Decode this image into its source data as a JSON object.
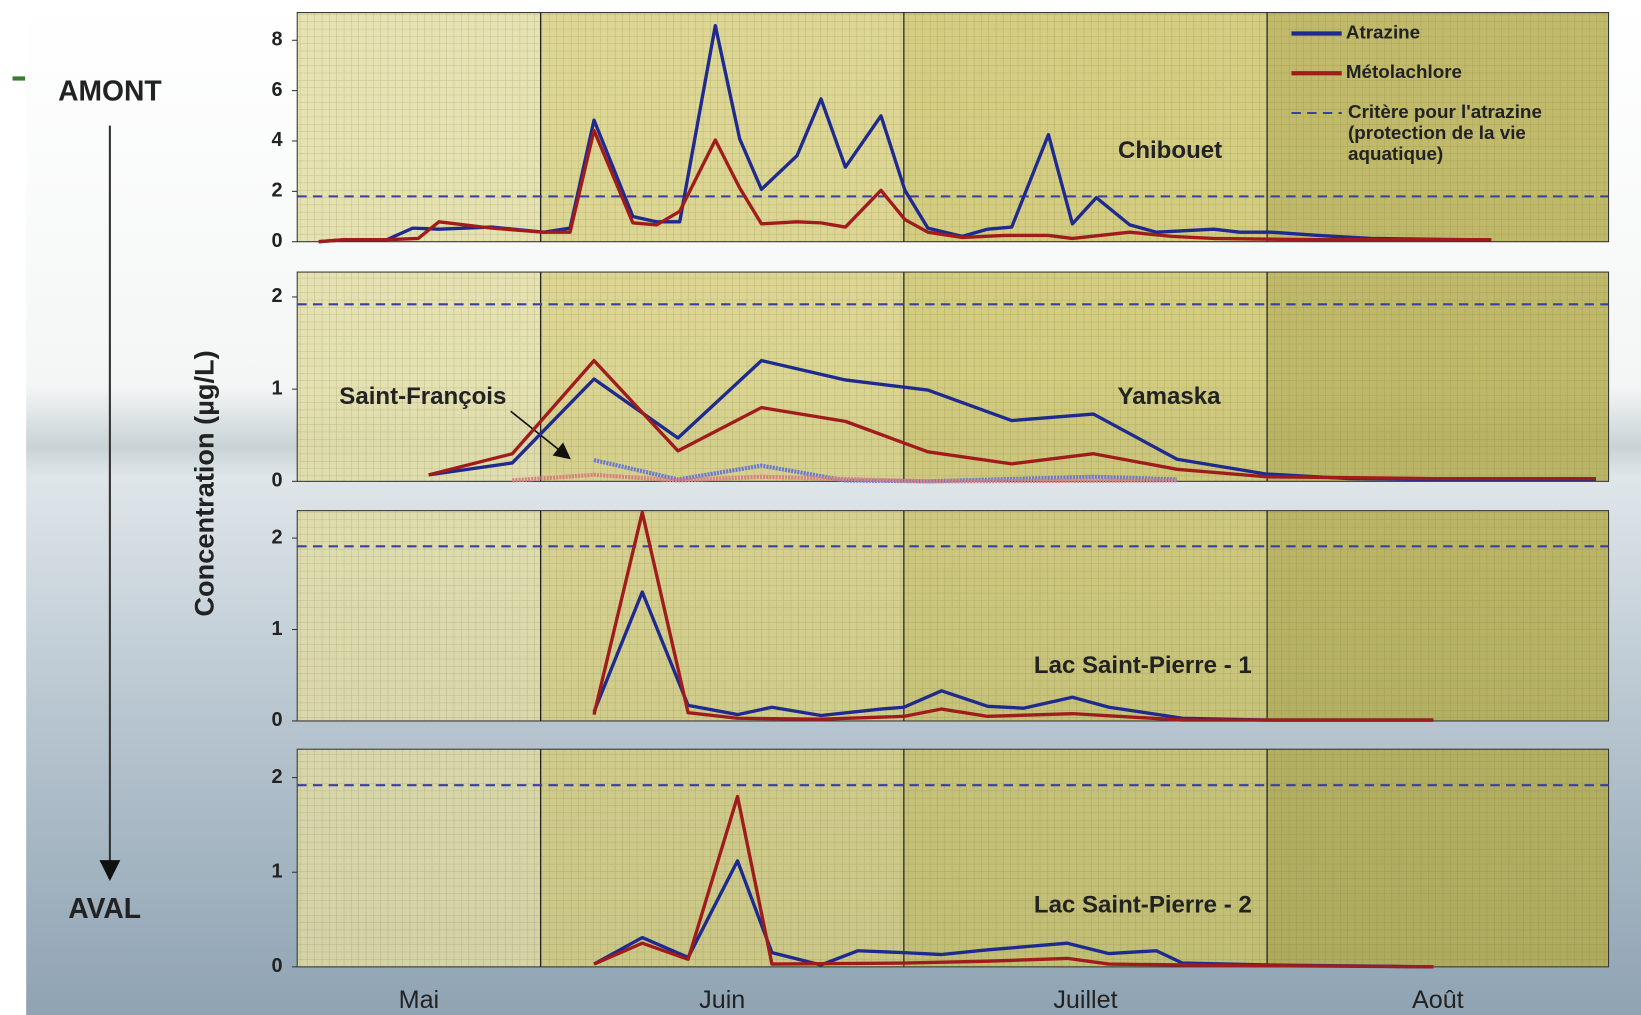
{
  "page": {
    "upstream": "AMONT",
    "downstream": "AVAL",
    "y_label": "Concentration (µg/L)"
  },
  "chart_data": [
    {
      "type": "line",
      "title": "Chibouet",
      "xlim": [
        0.33,
        3.94
      ],
      "xticks": [
        1,
        2,
        3
      ],
      "ylim": [
        0,
        9.1
      ],
      "yticks": [
        0,
        2,
        4,
        6,
        8
      ],
      "reference_line": {
        "name": "Critère pour l'atrazine (protection de la vie aquatique)",
        "value": 1.8,
        "color": "#3b3fa0"
      },
      "series": [
        {
          "name": "Atrazine",
          "color": "#1f2a8f",
          "x": [
            0.389,
            0.461,
            0.576,
            0.648,
            0.72,
            0.865,
            1.009,
            1.081,
            1.147,
            1.254,
            1.32,
            1.383,
            1.481,
            1.548,
            1.608,
            1.706,
            1.772,
            1.839,
            1.937,
            2.003,
            2.066,
            2.161,
            2.231,
            2.297,
            2.398,
            2.464,
            2.53,
            2.622,
            2.695,
            2.853,
            2.925,
            3.012,
            3.141,
            3.285,
            3.545,
            3.617
          ],
          "values": [
            0,
            0.08,
            0.08,
            0.54,
            0.5,
            0.58,
            0.38,
            0.54,
            4.83,
            1.0,
            0.79,
            0.79,
            8.58,
            4.08,
            2.08,
            3.42,
            5.67,
            2.96,
            5.0,
            2.04,
            0.54,
            0.21,
            0.5,
            0.58,
            4.25,
            0.71,
            1.75,
            0.67,
            0.38,
            0.5,
            0.38,
            0.38,
            0.25,
            0.13,
            0.08,
            0.08
          ]
        },
        {
          "name": "Métolachlore",
          "color": "#a01c1c",
          "x": [
            0.389,
            0.461,
            0.576,
            0.663,
            0.72,
            0.865,
            1.009,
            1.081,
            1.147,
            1.254,
            1.32,
            1.383,
            1.481,
            1.548,
            1.608,
            1.706,
            1.772,
            1.839,
            1.937,
            2.003,
            2.066,
            2.161,
            2.277,
            2.398,
            2.464,
            2.622,
            2.738,
            2.853,
            3.141,
            3.617
          ],
          "values": [
            0,
            0.08,
            0.08,
            0.13,
            0.79,
            0.54,
            0.38,
            0.38,
            4.42,
            0.75,
            0.67,
            1.21,
            4.04,
            2.13,
            0.71,
            0.79,
            0.75,
            0.58,
            2.04,
            0.88,
            0.38,
            0.17,
            0.25,
            0.25,
            0.13,
            0.38,
            0.21,
            0.13,
            0.08,
            0.08
          ]
        }
      ]
    },
    {
      "type": "line",
      "title": "Yamaska",
      "xlim": [
        0.33,
        3.94
      ],
      "xticks": [
        1,
        2,
        3
      ],
      "ylim": [
        0,
        2.27
      ],
      "yticks": [
        0,
        1,
        2
      ],
      "reference_line": {
        "value": 1.92,
        "color": "#3b3fa0"
      },
      "series": [
        {
          "name": "Atrazine",
          "color": "#1f2a8f",
          "x": [
            0.692,
            0.922,
            1.147,
            1.378,
            1.608,
            1.839,
            2.066,
            2.297,
            2.522,
            2.752,
            2.997,
            3.228,
            3.458,
            3.905
          ],
          "values": [
            0.07,
            0.2,
            1.11,
            0.47,
            1.31,
            1.1,
            0.99,
            0.66,
            0.73,
            0.24,
            0.08,
            0.03,
            0.02,
            0.02
          ]
        },
        {
          "name": "Métolachlore",
          "color": "#a01c1c",
          "x": [
            0.692,
            0.922,
            1.147,
            1.378,
            1.608,
            1.839,
            2.066,
            2.297,
            2.522,
            2.752,
            2.997,
            3.458,
            3.905
          ],
          "values": [
            0.07,
            0.3,
            1.31,
            0.33,
            0.8,
            0.65,
            0.32,
            0.19,
            0.3,
            0.13,
            0.05,
            0.03,
            0.03
          ]
        }
      ],
      "inset": {
        "label": "Saint-François",
        "series": [
          {
            "color": "#6a78d0",
            "x": [
              1.147,
              1.378,
              1.608,
              1.839,
              2.066,
              2.522,
              2.752
            ],
            "values": [
              0.23,
              0.02,
              0.17,
              0.01,
              0,
              0.05,
              0.02
            ]
          },
          {
            "color": "#d98080",
            "x": [
              0.922,
              1.147,
              1.378,
              1.608,
              2.066,
              2.752
            ],
            "values": [
              0.01,
              0.07,
              0.01,
              0.05,
              0,
              0.01
            ]
          }
        ]
      }
    },
    {
      "type": "line",
      "title": "Lac Saint-Pierre - 1",
      "xlim": [
        0.33,
        3.94
      ],
      "xticks": [
        1,
        2,
        3
      ],
      "ylim": [
        0,
        2.3
      ],
      "yticks": [
        0,
        1,
        2
      ],
      "reference_line": {
        "value": 1.91,
        "color": "#3b3fa0"
      },
      "series": [
        {
          "name": "Atrazine",
          "color": "#1f2a8f",
          "x": [
            1.147,
            1.28,
            1.406,
            1.542,
            1.637,
            1.772,
            1.937,
            2.0,
            2.104,
            2.231,
            2.329,
            2.464,
            2.565,
            2.767,
            2.997,
            3.458
          ],
          "values": [
            0.1,
            1.41,
            0.17,
            0.07,
            0.15,
            0.06,
            0.13,
            0.15,
            0.33,
            0.16,
            0.14,
            0.26,
            0.15,
            0.03,
            0.01,
            0.01
          ]
        },
        {
          "name": "Métolachlore",
          "color": "#a01c1c",
          "x": [
            1.147,
            1.28,
            1.406,
            1.542,
            1.772,
            2.0,
            2.104,
            2.231,
            2.464,
            2.767,
            3.458
          ],
          "values": [
            0.07,
            2.28,
            0.09,
            0.03,
            0.02,
            0.05,
            0.13,
            0.05,
            0.08,
            0.01,
            0.01
          ]
        }
      ]
    },
    {
      "type": "line",
      "title": "Lac Saint-Pierre - 2",
      "xlim": [
        0.33,
        3.94
      ],
      "xticks": [
        1,
        2,
        3
      ],
      "categories": [
        "Mai",
        "Juin",
        "Juillet",
        "Août"
      ],
      "ylim": [
        0,
        2.3
      ],
      "yticks": [
        0,
        1,
        2
      ],
      "reference_line": {
        "value": 1.92,
        "color": "#3b3fa0"
      },
      "series": [
        {
          "name": "Atrazine",
          "color": "#1f2a8f",
          "x": [
            1.147,
            1.28,
            1.406,
            1.542,
            1.637,
            1.772,
            1.873,
            2.0,
            2.104,
            2.231,
            2.45,
            2.565,
            2.695,
            2.767,
            2.997,
            3.458
          ],
          "values": [
            0.03,
            0.31,
            0.1,
            1.12,
            0.15,
            0.02,
            0.17,
            0.15,
            0.13,
            0.18,
            0.25,
            0.14,
            0.17,
            0.04,
            0.02,
            0
          ]
        },
        {
          "name": "Métolachlore",
          "color": "#a01c1c",
          "x": [
            1.147,
            1.28,
            1.406,
            1.542,
            1.637,
            2.0,
            2.231,
            2.45,
            2.565,
            2.767,
            3.458
          ],
          "values": [
            0.03,
            0.25,
            0.08,
            1.8,
            0.03,
            0.04,
            0.06,
            0.09,
            0.03,
            0.02,
            0
          ]
        }
      ]
    }
  ]
}
